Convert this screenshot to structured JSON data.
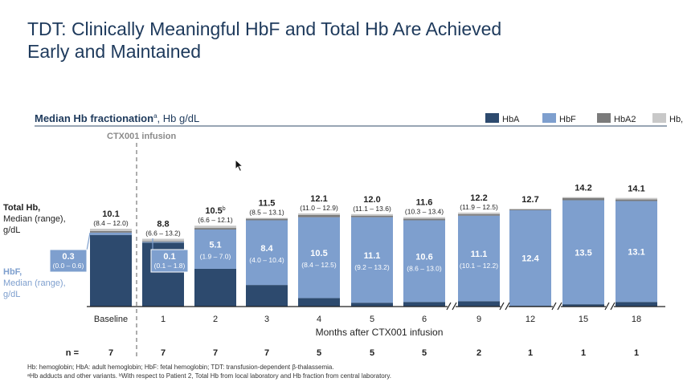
{
  "slide": {
    "title_line1": "TDT: Clinically Meaningful HbF and Total Hb Are Achieved",
    "title_line2": "Early and Maintained"
  },
  "chart_data": {
    "type": "bar",
    "stacked": true,
    "header": "Median Hb fractionation",
    "header_sup": "a",
    "header_suffix": ", Hb g/dL",
    "annotation": "CTX001 infusion",
    "xlabel": "Months after CTX001 infusion",
    "categories": [
      "Baseline",
      "1",
      "2",
      "3",
      "4",
      "5",
      "6",
      "9",
      "12",
      "15",
      "18"
    ],
    "legend": [
      {
        "name": "HbA",
        "color": "#2d4a6e"
      },
      {
        "name": "HbF",
        "color": "#7e9fce"
      },
      {
        "name": "HbA2",
        "color": "#7b7b7b"
      },
      {
        "name": "Hb, other",
        "sup": "a",
        "color": "#c8c8c8"
      }
    ],
    "legend_position": "top-right",
    "total_hb": {
      "label_line1": "Total Hb,",
      "label_line2": "Median (range),",
      "label_line3": "g/dL",
      "values": [
        "10.1",
        "8.8",
        "10.5",
        "11.5",
        "12.1",
        "12.0",
        "11.6",
        "12.2",
        "12.7",
        "14.2",
        "14.1"
      ],
      "sups": [
        "",
        "",
        "b",
        "",
        "",
        "",
        "",
        "",
        "",
        "",
        ""
      ],
      "ranges": [
        "(8.4 – 12.0)",
        "(6.6 – 13.2)",
        "(6.6 – 12.1)",
        "(8.5 – 13.1)",
        "(11.0 – 12.9)",
        "(11.1 – 13.6)",
        "(10.3 – 13.4)",
        "(11.9 – 12.5)",
        "",
        "",
        ""
      ]
    },
    "hbf": {
      "label_line1": "HbF,",
      "label_line2": "Median (range),",
      "label_line3": "g/dL",
      "values": [
        "0.3",
        "0.1",
        "5.1",
        "8.4",
        "10.5",
        "11.1",
        "10.6",
        "11.1",
        "12.4",
        "13.5",
        "13.1"
      ],
      "ranges": [
        "(0.0 – 0.6)",
        "(0.1 – 1.8)",
        "(1.9 – 7.0)",
        "(4.0 – 10.4)",
        "(8.4 – 12.5)",
        "(9.2 – 13.2)",
        "(8.6 – 13.0)",
        "(10.1 – 12.2)",
        "",
        "",
        ""
      ]
    },
    "series": [
      {
        "name": "HbA",
        "values": [
          9.3,
          8.3,
          4.9,
          2.8,
          1.1,
          0.5,
          0.6,
          0.7,
          0.1,
          0.3,
          0.6
        ]
      },
      {
        "name": "HbF",
        "values": [
          0.3,
          0.1,
          5.1,
          8.4,
          10.5,
          11.1,
          10.6,
          11.1,
          12.4,
          13.5,
          13.1
        ]
      },
      {
        "name": "HbA2",
        "values": [
          0.2,
          0.1,
          0.2,
          0.2,
          0.3,
          0.2,
          0.2,
          0.2,
          0.1,
          0.3,
          0.2
        ]
      },
      {
        "name": "Hb, other",
        "values": [
          0.3,
          0.3,
          0.3,
          0.1,
          0.2,
          0.2,
          0.2,
          0.2,
          0.1,
          0.1,
          0.2
        ]
      }
    ],
    "axis_breaks_before": [
      "9",
      "12",
      "15",
      "18"
    ],
    "n_label": "n =",
    "n_values": [
      "7",
      "7",
      "7",
      "7",
      "5",
      "5",
      "5",
      "2",
      "1",
      "1",
      "1"
    ],
    "ylim": [
      0,
      15
    ],
    "grid": false
  },
  "footnotes": {
    "line1": "Hb: hemoglobin; HbA: adult hemoglobin; HbF: fetal hemoglobin; TDT: transfusion-dependent β-thalassemia.",
    "line2": "ᵃHb adducts and other variants. ᵇWith respect to Patient 2, Total Hb from local laboratory and Hb fraction from central laboratory."
  }
}
